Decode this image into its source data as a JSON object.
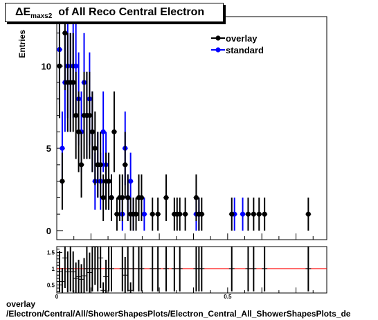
{
  "title": {
    "symbol": "ΔE",
    "subscript": "maxs2",
    "rest": "of All Reco Central Electron"
  },
  "footer": {
    "line1": "overlay",
    "line2": "/Electron/Central/All/ShowerShapesPlots/Electron_Central_All_ShowerShapesPlots_de"
  },
  "colors": {
    "overlay": "#000000",
    "standard": "#0000ff",
    "ratio_line": "#ff0000"
  },
  "chart_data": [
    {
      "type": "scatter",
      "title": "ΔE_maxs2 of All Reco Central Electron",
      "ylabel": "Entries",
      "xlabel": "",
      "xlim": [
        0,
        0.79
      ],
      "ylim": [
        -0.55,
        13.0
      ],
      "yticks": [
        "0",
        "5",
        "10"
      ],
      "legend_position": "top-right",
      "series": [
        {
          "name": "overlay",
          "points": [
            [
              0.008,
              10
            ],
            [
              0.016,
              3
            ],
            [
              0.024,
              12
            ],
            [
              0.032,
              9
            ],
            [
              0.04,
              9
            ],
            [
              0.048,
              9
            ],
            [
              0.056,
              7
            ],
            [
              0.064,
              6
            ],
            [
              0.072,
              4
            ],
            [
              0.08,
              7
            ],
            [
              0.088,
              7
            ],
            [
              0.096,
              7
            ],
            [
              0.104,
              6
            ],
            [
              0.112,
              5
            ],
            [
              0.12,
              4
            ],
            [
              0.128,
              4
            ],
            [
              0.136,
              2
            ],
            [
              0.144,
              3
            ],
            [
              0.152,
              3
            ],
            [
              0.16,
              2
            ],
            [
              0.168,
              6
            ],
            [
              0.176,
              1
            ],
            [
              0.184,
              2
            ],
            [
              0.192,
              2
            ],
            [
              0.2,
              4
            ],
            [
              0.208,
              2
            ],
            [
              0.216,
              1
            ],
            [
              0.224,
              1
            ],
            [
              0.232,
              1
            ],
            [
              0.24,
              2
            ],
            [
              0.248,
              2
            ],
            [
              0.28,
              1
            ],
            [
              0.296,
              1
            ],
            [
              0.32,
              2
            ],
            [
              0.344,
              1
            ],
            [
              0.352,
              1
            ],
            [
              0.36,
              1
            ],
            [
              0.376,
              1
            ],
            [
              0.408,
              2
            ],
            [
              0.416,
              1
            ],
            [
              0.424,
              1
            ],
            [
              0.512,
              1
            ],
            [
              0.56,
              1
            ],
            [
              0.576,
              1
            ],
            [
              0.592,
              1
            ],
            [
              0.608,
              1
            ],
            [
              0.736,
              1
            ]
          ]
        },
        {
          "name": "standard",
          "points": [
            [
              0.008,
              11
            ],
            [
              0.016,
              5
            ],
            [
              0.024,
              9
            ],
            [
              0.032,
              10
            ],
            [
              0.04,
              9
            ],
            [
              0.048,
              10
            ],
            [
              0.056,
              10
            ],
            [
              0.064,
              8
            ],
            [
              0.072,
              6
            ],
            [
              0.08,
              9
            ],
            [
              0.088,
              7
            ],
            [
              0.096,
              8
            ],
            [
              0.104,
              6
            ],
            [
              0.112,
              3
            ],
            [
              0.12,
              4
            ],
            [
              0.128,
              3
            ],
            [
              0.136,
              6
            ],
            [
              0.144,
              4
            ],
            [
              0.152,
              3
            ],
            [
              0.16,
              2
            ],
            [
              0.192,
              1
            ],
            [
              0.2,
              5
            ],
            [
              0.208,
              2
            ],
            [
              0.216,
              3
            ],
            [
              0.224,
              1
            ],
            [
              0.256,
              1
            ],
            [
              0.408,
              1
            ],
            [
              0.416,
              1
            ],
            [
              0.52,
              1
            ],
            [
              0.544,
              1
            ]
          ]
        }
      ]
    },
    {
      "type": "scatter",
      "title": "",
      "ylabel": "",
      "xlabel": "",
      "xlim": [
        0,
        0.79
      ],
      "ylim": [
        0.25,
        1.68
      ],
      "yticks": [
        "0.5",
        "1",
        "1.5"
      ],
      "xticks": [
        "0",
        "0.5"
      ],
      "reference_line": 1,
      "series": [
        {
          "name": "",
          "points": [
            [
              0.008,
              0.91
            ],
            [
              0.016,
              0.6
            ],
            [
              0.024,
              1.33
            ],
            [
              0.032,
              0.9
            ],
            [
              0.04,
              1.0
            ],
            [
              0.048,
              0.9
            ],
            [
              0.056,
              0.7
            ],
            [
              0.064,
              0.75
            ],
            [
              0.072,
              0.67
            ],
            [
              0.08,
              0.78
            ],
            [
              0.088,
              1.0
            ],
            [
              0.096,
              0.88
            ],
            [
              0.104,
              1.0
            ],
            [
              0.112,
              1.67
            ],
            [
              0.12,
              1.0
            ],
            [
              0.128,
              1.33
            ],
            [
              0.136,
              0.33
            ],
            [
              0.144,
              0.75
            ],
            [
              0.152,
              1.0
            ],
            [
              0.16,
              1.0
            ],
            [
              0.192,
              1.0
            ],
            [
              0.2,
              0.8
            ],
            [
              0.208,
              1.0
            ],
            [
              0.216,
              0.33
            ],
            [
              0.224,
              1.0
            ],
            [
              0.24,
              1.0
            ],
            [
              0.248,
              1.0
            ],
            [
              0.28,
              1.0
            ],
            [
              0.296,
              1.0
            ],
            [
              0.32,
              1.0
            ],
            [
              0.344,
              1.0
            ],
            [
              0.36,
              1.0
            ],
            [
              0.408,
              1.0
            ],
            [
              0.416,
              1.0
            ],
            [
              0.424,
              1.0
            ],
            [
              0.512,
              1.0
            ],
            [
              0.56,
              1.0
            ],
            [
              0.576,
              1.0
            ],
            [
              0.608,
              1.0
            ],
            [
              0.736,
              1.0
            ]
          ]
        }
      ]
    }
  ]
}
